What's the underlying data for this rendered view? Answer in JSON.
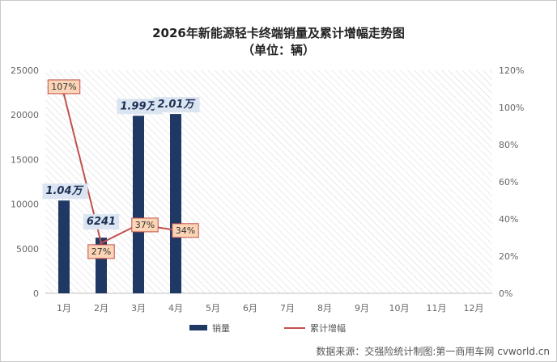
{
  "chart_data": {
    "type": "bar",
    "title": "2026年新能源轻卡终端销量及累计增幅走势图",
    "subtitle": "（单位：辆）",
    "categories": [
      "1月",
      "2月",
      "3月",
      "4月",
      "5月",
      "6月",
      "7月",
      "8月",
      "9月",
      "10月",
      "11月",
      "12月"
    ],
    "series": [
      {
        "name": "销量",
        "kind": "bar",
        "axis": "left",
        "color": "#1f3864",
        "values": [
          10400,
          6241,
          19900,
          20100,
          null,
          null,
          null,
          null,
          null,
          null,
          null,
          null
        ],
        "labels": [
          "1.04万",
          "6241",
          "1.99万",
          "2.01万"
        ]
      },
      {
        "name": "累计增幅",
        "kind": "line",
        "axis": "right",
        "color": "#c0504d",
        "values": [
          1.07,
          0.27,
          0.37,
          0.34,
          null,
          null,
          null,
          null,
          null,
          null,
          null,
          null
        ],
        "labels": [
          "107%",
          "27%",
          "37%",
          "34%"
        ]
      }
    ],
    "yleft": {
      "ylim": [
        0,
        25000
      ],
      "ticks": [
        0,
        5000,
        10000,
        15000,
        20000,
        25000
      ],
      "tick_labels": [
        "0",
        "5000",
        "10000",
        "15000",
        "20000",
        "25000"
      ]
    },
    "yright": {
      "ylim": [
        0,
        1.2
      ],
      "ticks": [
        0,
        0.2,
        0.4,
        0.6,
        0.8,
        1.0,
        1.2
      ],
      "tick_labels": [
        "0%",
        "20%",
        "40%",
        "60%",
        "80%",
        "100%",
        "120%"
      ]
    },
    "grid": "hatched plot background, no gridlines",
    "legend_position": "bottom",
    "source": "数据来源：交强险统计制图:第一商用车网 cvworld.cn",
    "colors": {
      "bar": "#1f3864",
      "line": "#c0504d",
      "bar_label_bg": "#dbe5f1",
      "rate_label_bg": "#fbd5b5",
      "rate_label_border": "#c0504d"
    }
  }
}
